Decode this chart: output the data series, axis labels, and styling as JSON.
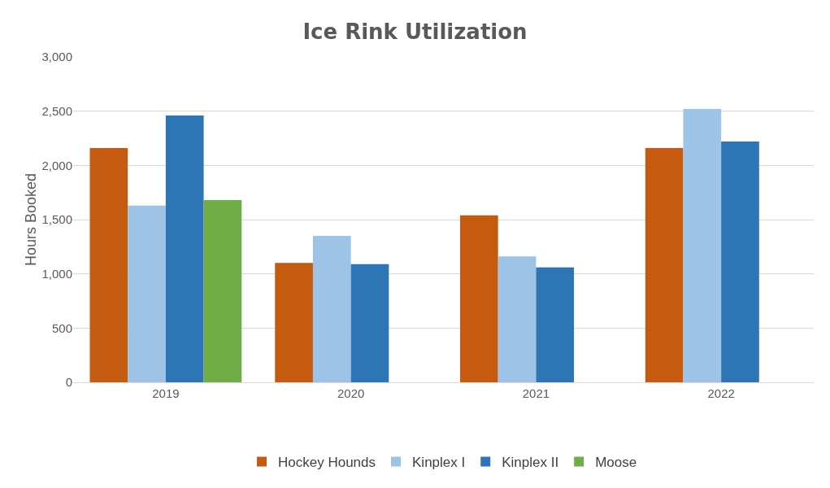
{
  "chart_data": {
    "type": "bar",
    "title": "Ice Rink Utilization",
    "ylabel": "Hours Booked",
    "categories": [
      "2019",
      "2020",
      "2021",
      "2022"
    ],
    "series": [
      {
        "name": "Hockey Hounds",
        "color": "#c55a11",
        "values": [
          2160,
          1100,
          1540,
          2160
        ]
      },
      {
        "name": "Kinplex I",
        "color": "#9dc3e6",
        "values": [
          1630,
          1350,
          1160,
          2520
        ]
      },
      {
        "name": "Kinplex II",
        "color": "#2e75b6",
        "values": [
          2460,
          1090,
          1060,
          2220
        ]
      },
      {
        "name": "Moose",
        "color": "#70ad47",
        "values": [
          1680,
          null,
          null,
          null
        ]
      }
    ],
    "ylim": [
      0,
      3000
    ],
    "yticks": [
      {
        "value": 0,
        "label": "0"
      },
      {
        "value": 500,
        "label": "500"
      },
      {
        "value": 1000,
        "label": "1,000"
      },
      {
        "value": 1500,
        "label": "1,500"
      },
      {
        "value": 2000,
        "label": "2,000"
      },
      {
        "value": 2500,
        "label": "2,500"
      },
      {
        "value": 3000,
        "label": "3,000"
      }
    ],
    "grid": "y",
    "legend": "bottom"
  }
}
